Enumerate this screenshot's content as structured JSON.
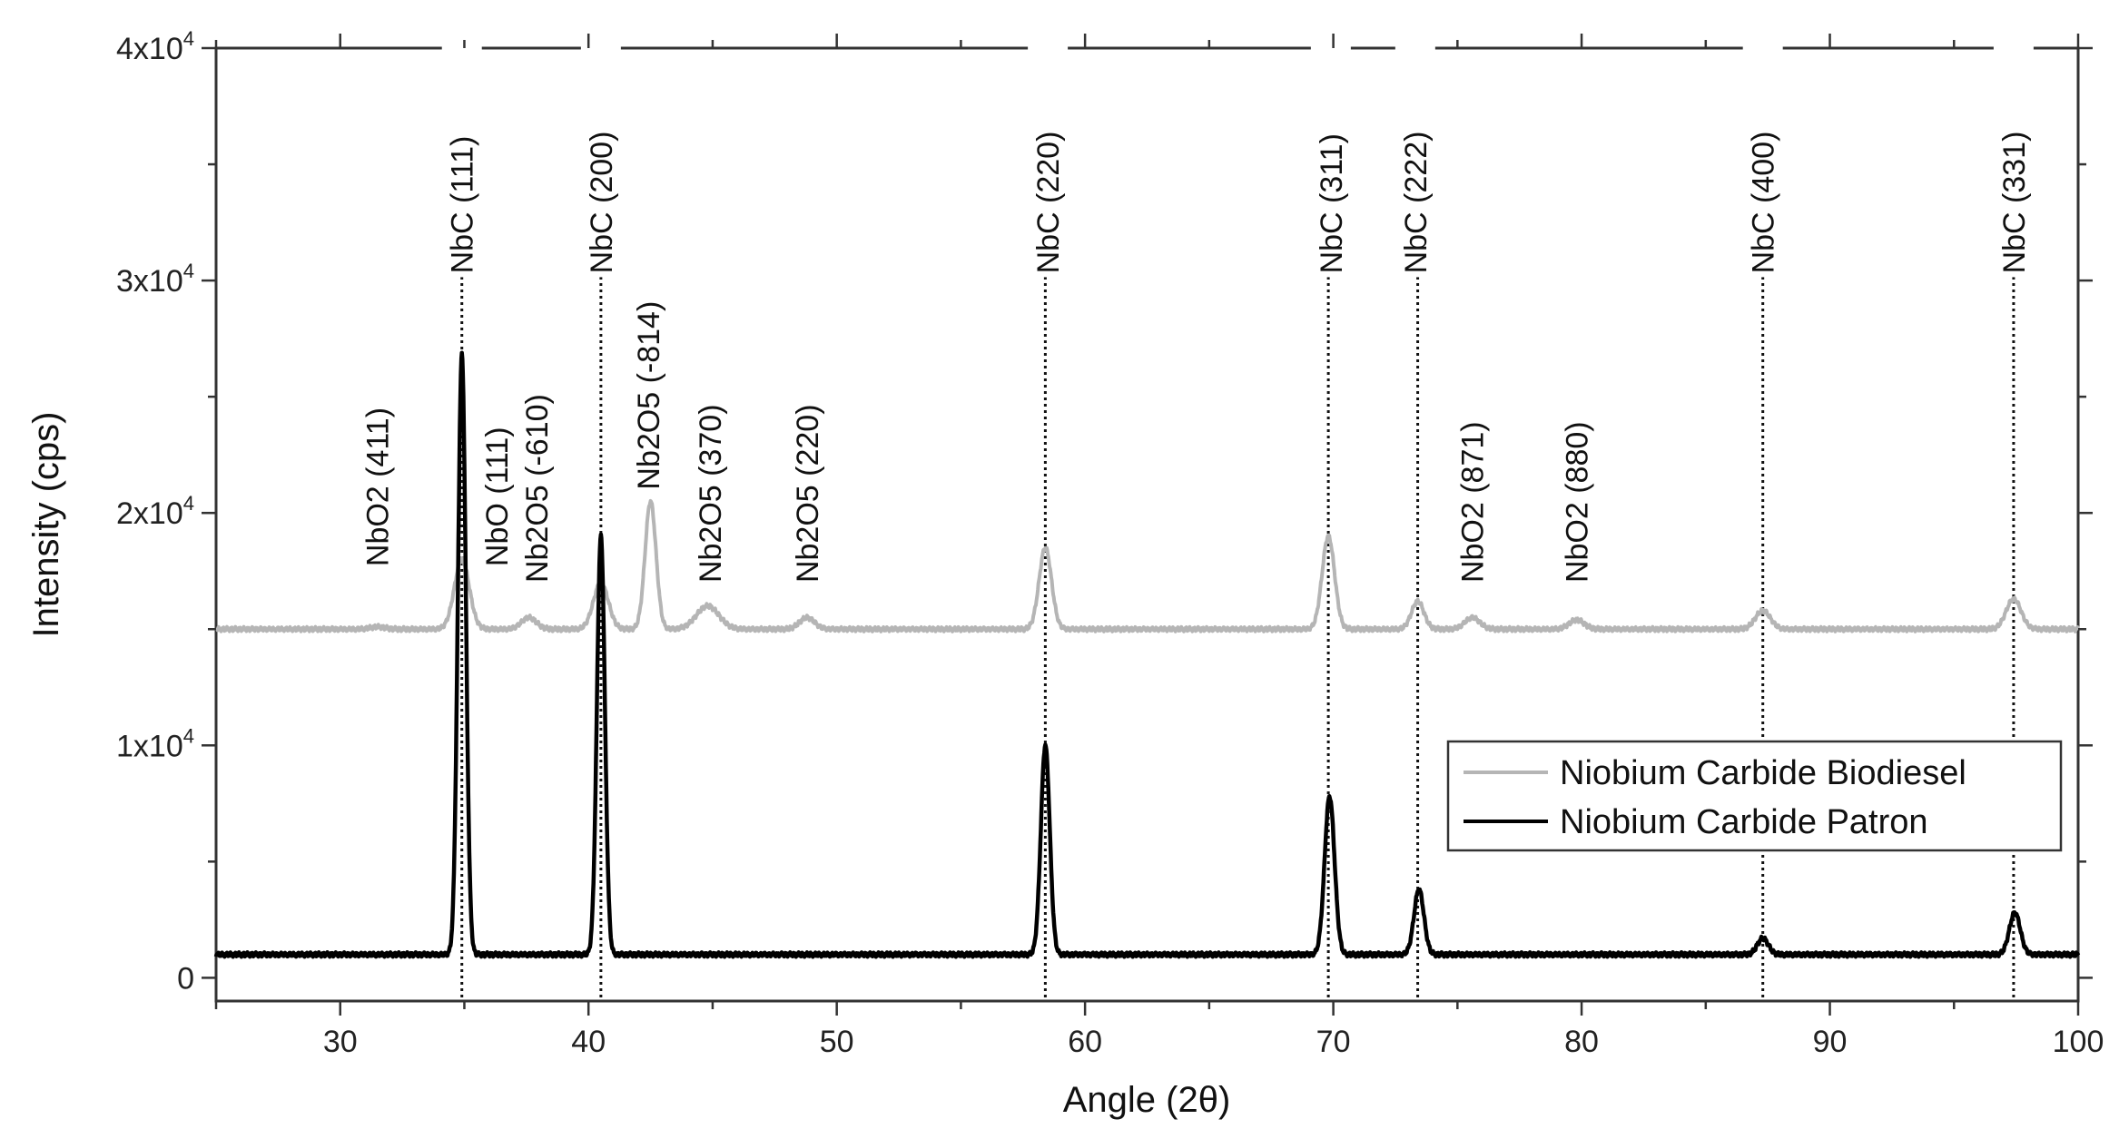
{
  "chart_data": {
    "type": "line",
    "xlabel": "Angle (2θ)",
    "ylabel": "Intensity (cps)",
    "xlim": [
      25,
      100
    ],
    "ylim": [
      -1000,
      40000
    ],
    "x_ticks": [
      30,
      40,
      50,
      60,
      70,
      80,
      90,
      100
    ],
    "y_ticks": [
      {
        "value": 0,
        "mantissa": "0",
        "exponent": ""
      },
      {
        "value": 10000,
        "mantissa": "1x10",
        "exponent": "4"
      },
      {
        "value": 20000,
        "mantissa": "2x10",
        "exponent": "4"
      },
      {
        "value": 30000,
        "mantissa": "3x10",
        "exponent": "4"
      },
      {
        "value": 40000,
        "mantissa": "4x10",
        "exponent": "4"
      }
    ],
    "legend_position": "right",
    "series": [
      {
        "name": "Niobium Carbide Biodiesel",
        "color": "#b5b5b5",
        "baseline": 15000,
        "peaks": [
          {
            "x": 31.5,
            "height": 100,
            "width": 0.3
          },
          {
            "x": 34.9,
            "height": 3000,
            "width": 0.3
          },
          {
            "x": 37.6,
            "height": 500,
            "width": 0.3
          },
          {
            "x": 40.5,
            "height": 2000,
            "width": 0.3
          },
          {
            "x": 42.5,
            "height": 5500,
            "width": 0.22
          },
          {
            "x": 44.8,
            "height": 1000,
            "width": 0.45
          },
          {
            "x": 48.8,
            "height": 500,
            "width": 0.3
          },
          {
            "x": 58.4,
            "height": 3500,
            "width": 0.25
          },
          {
            "x": 69.8,
            "height": 4000,
            "width": 0.25
          },
          {
            "x": 73.4,
            "height": 1200,
            "width": 0.25
          },
          {
            "x": 75.6,
            "height": 500,
            "width": 0.3
          },
          {
            "x": 79.8,
            "height": 400,
            "width": 0.3
          },
          {
            "x": 87.3,
            "height": 800,
            "width": 0.3
          },
          {
            "x": 97.4,
            "height": 1300,
            "width": 0.3
          }
        ]
      },
      {
        "name": "Niobium Carbide Patron",
        "color": "#000000",
        "baseline": 1000,
        "peaks": [
          {
            "x": 34.9,
            "height": 25800,
            "width": 0.16
          },
          {
            "x": 40.5,
            "height": 18000,
            "width": 0.16
          },
          {
            "x": 58.4,
            "height": 9000,
            "width": 0.18
          },
          {
            "x": 69.85,
            "height": 6800,
            "width": 0.2
          },
          {
            "x": 73.45,
            "height": 2800,
            "width": 0.2
          },
          {
            "x": 87.3,
            "height": 700,
            "width": 0.22
          },
          {
            "x": 97.45,
            "height": 1800,
            "width": 0.22
          }
        ]
      }
    ],
    "reference_lines": [
      34.9,
      40.5,
      58.4,
      69.8,
      73.4,
      87.3,
      97.4
    ],
    "annotations": [
      {
        "text": "NbO2 (411)",
        "x": 31.5,
        "y": 17700
      },
      {
        "text": "NbC (111)",
        "x": 34.9,
        "y": 30300
      },
      {
        "text": "NbO (111)",
        "x": 36.3,
        "y": 17700
      },
      {
        "text": "Nb2O5 (-610)",
        "x": 37.9,
        "y": 17000
      },
      {
        "text": "NbC (200)",
        "x": 40.5,
        "y": 30300
      },
      {
        "text": "Nb2O5 (-814)",
        "x": 42.4,
        "y": 21000
      },
      {
        "text": "Nb2O5 (370)",
        "x": 44.9,
        "y": 17000
      },
      {
        "text": "Nb2O5 (220)",
        "x": 48.8,
        "y": 17000
      },
      {
        "text": "NbC (220)",
        "x": 58.5,
        "y": 30300
      },
      {
        "text": "NbC (311)",
        "x": 69.9,
        "y": 30300
      },
      {
        "text": "NbC (222)",
        "x": 73.3,
        "y": 30300
      },
      {
        "text": "NbO2 (871)",
        "x": 75.6,
        "y": 17000
      },
      {
        "text": "NbO2 (880)",
        "x": 79.8,
        "y": 17000
      },
      {
        "text": "NbC (400)",
        "x": 87.3,
        "y": 30300
      },
      {
        "text": "NbC (331)",
        "x": 97.4,
        "y": 30300
      }
    ]
  }
}
